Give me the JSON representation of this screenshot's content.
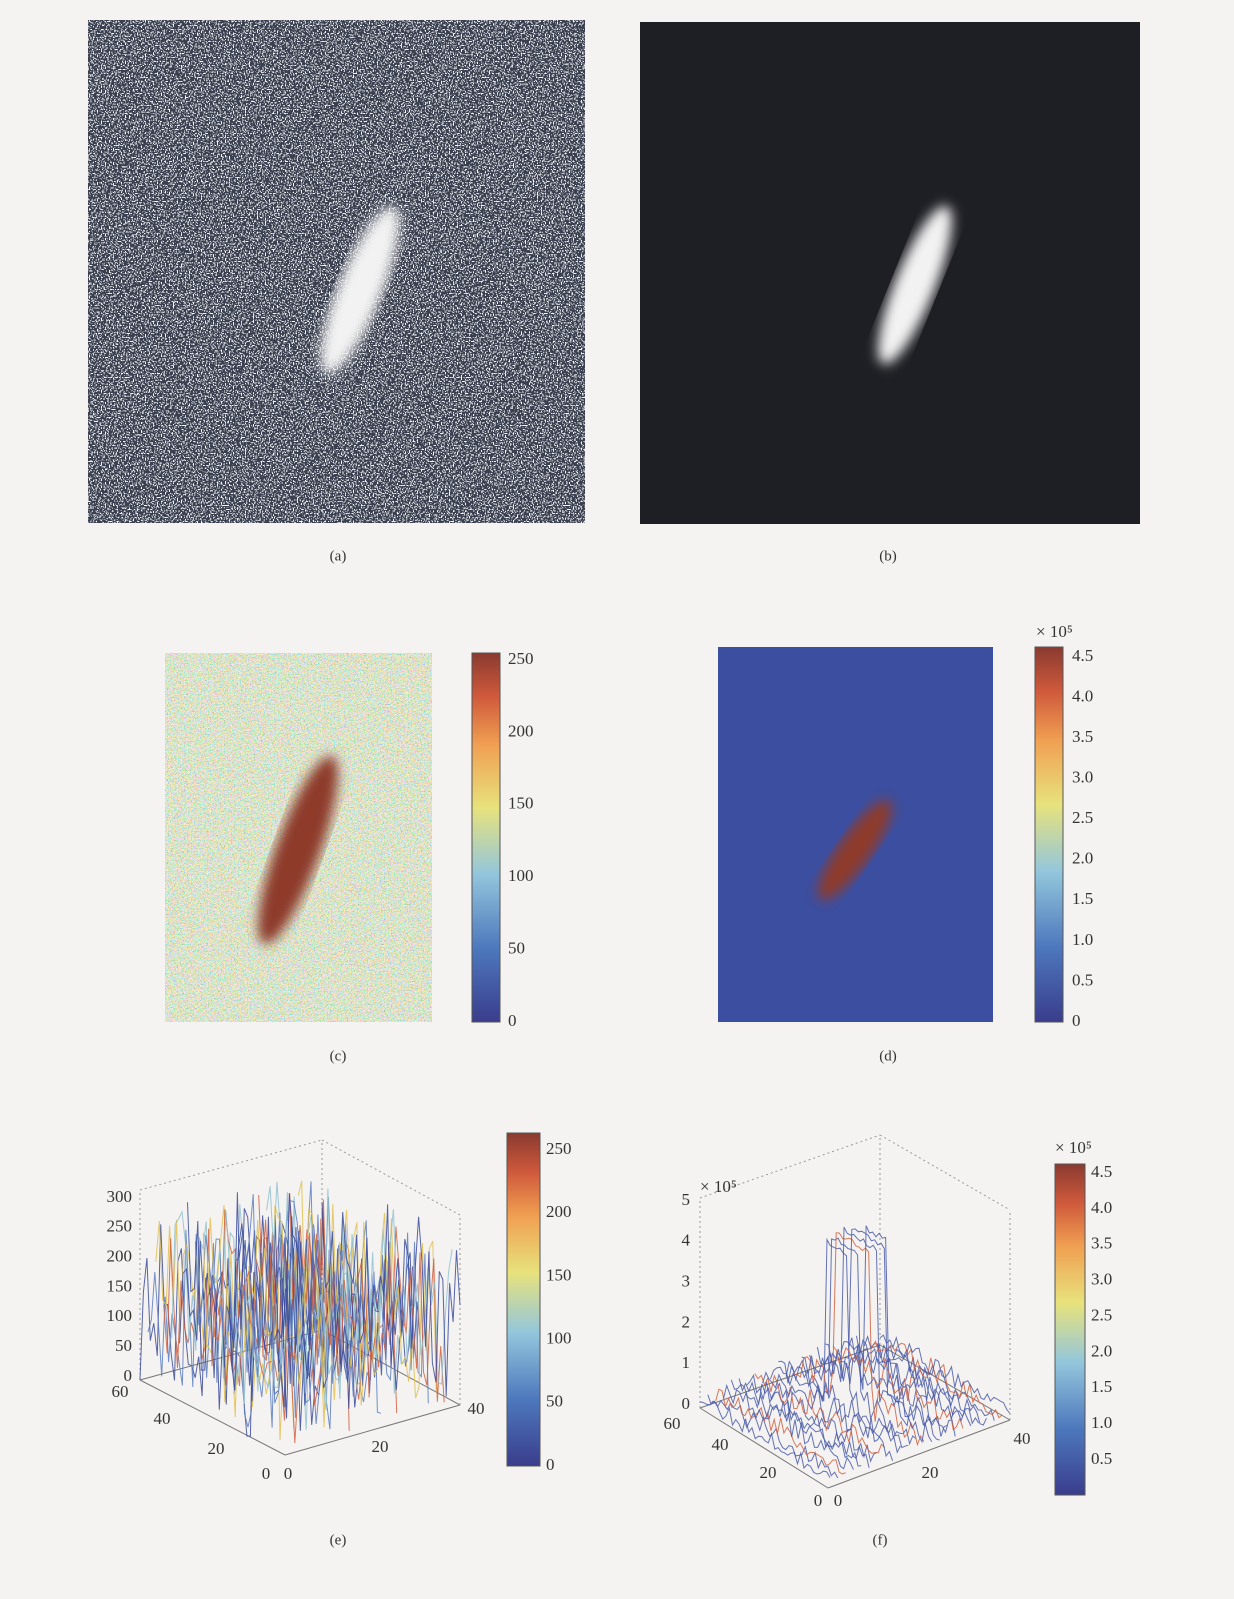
{
  "panels": [
    {
      "label": "(a)"
    },
    {
      "label": "(b)"
    },
    {
      "label": "(c)",
      "colorbar": {
        "ticks": [
          "250",
          "200",
          "150",
          "100",
          "50",
          "0"
        ]
      }
    },
    {
      "label": "(d)",
      "colorbar": {
        "multiplier": "× 10⁵",
        "ticks": [
          "4.5",
          "4.0",
          "3.5",
          "3.0",
          "2.5",
          "2.0",
          "1.5",
          "1.0",
          "0.5",
          "0"
        ]
      }
    },
    {
      "label": "(e)",
      "z_ticks": [
        "300",
        "250",
        "200",
        "150",
        "100",
        "50",
        "0"
      ],
      "y_ticks": [
        "60",
        "40",
        "20",
        "0"
      ],
      "x_ticks": [
        "0",
        "20",
        "40"
      ],
      "colorbar": {
        "ticks": [
          "250",
          "200",
          "150",
          "100",
          "50",
          "0"
        ]
      }
    },
    {
      "label": "(f)",
      "multiplier": "× 10⁵",
      "z_ticks": [
        "5",
        "4",
        "3",
        "2",
        "1",
        "0"
      ],
      "y_ticks": [
        "60",
        "40",
        "20",
        "0"
      ],
      "x_ticks": [
        "0",
        "20",
        "40"
      ],
      "colorbar": {
        "multiplier": "× 10⁵",
        "ticks": [
          "4.5",
          "4.0",
          "3.5",
          "3.0",
          "2.5",
          "2.0",
          "1.5",
          "1.0",
          "0.5"
        ]
      }
    }
  ]
}
